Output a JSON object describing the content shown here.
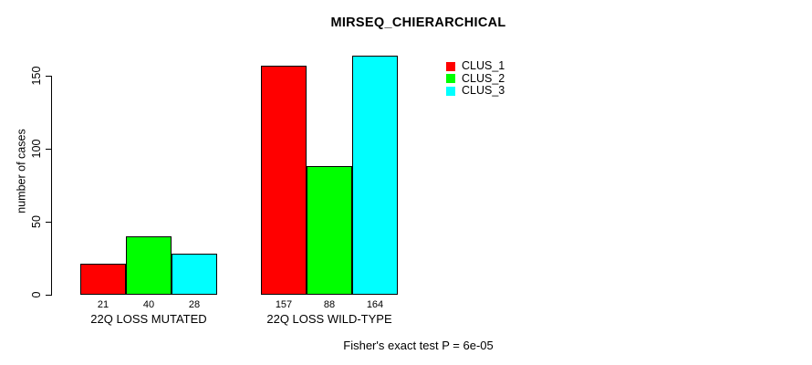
{
  "chart_data": {
    "type": "bar",
    "title": "MIRSEQ_CHIERARCHICAL",
    "ylabel": "number of cases",
    "xlabel": "",
    "footer": "Fisher's exact test P = 6e-05",
    "categories": [
      "22Q LOSS MUTATED",
      "22Q LOSS WILD-TYPE"
    ],
    "series": [
      {
        "name": "CLUS_1",
        "color": "#ff0000",
        "values": [
          21,
          157
        ]
      },
      {
        "name": "CLUS_2",
        "color": "#00ff00",
        "values": [
          40,
          88
        ]
      },
      {
        "name": "CLUS_3",
        "color": "#00ffff",
        "values": [
          28,
          164
        ]
      }
    ],
    "bar_value_labels": true,
    "yticks": [
      0,
      50,
      100,
      150
    ],
    "ylim": [
      0,
      165
    ],
    "grid": false,
    "legend_position": "upper-right-inside",
    "bar_border_color": "#000000",
    "background_color": "#ffffff",
    "text_color": "#000000"
  }
}
